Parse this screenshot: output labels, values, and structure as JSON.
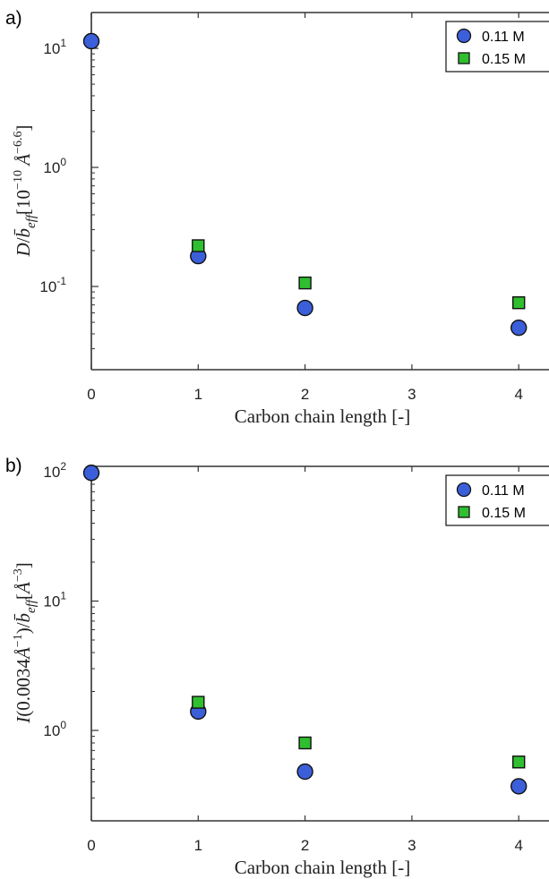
{
  "figure": {
    "panel_a_label": "a)",
    "panel_b_label": "b)"
  },
  "colors": {
    "series_0": "#3b5fd9",
    "series_1": "#2fbf2f",
    "axis": "#333333"
  },
  "chart_data": [
    {
      "type": "scatter",
      "panel": "a)",
      "xlabel": "Carbon chain length [-]",
      "ylabel": "D/b̄_eff [10^−10 Å^−6.6]",
      "xlim": [
        0,
        4.3
      ],
      "ylim": [
        0.02,
        20
      ],
      "yscale": "log",
      "xticks": [
        0,
        1,
        2,
        3,
        4
      ],
      "yticks": [
        {
          "value": 0.1,
          "base": "10",
          "exp": "-1"
        },
        {
          "value": 1,
          "base": "10",
          "exp": "0"
        },
        {
          "value": 10,
          "base": "10",
          "exp": "1"
        }
      ],
      "grid": false,
      "legend_position": "top-right",
      "series": [
        {
          "name": "0.11 M",
          "marker": "circle",
          "x": [
            0,
            1,
            2,
            4
          ],
          "y": [
            11.5,
            0.18,
            0.066,
            0.045
          ]
        },
        {
          "name": "0.15 M",
          "marker": "square",
          "x": [
            1,
            2,
            4
          ],
          "y": [
            0.22,
            0.107,
            0.073
          ]
        }
      ]
    },
    {
      "type": "scatter",
      "panel": "b)",
      "xlabel": "Carbon chain length [-]",
      "ylabel": "I(0.0034Å^−1)/b̄_eff [Å^−3]",
      "xlim": [
        0,
        4.3
      ],
      "ylim": [
        0.2,
        110
      ],
      "yscale": "log",
      "xticks": [
        0,
        1,
        2,
        3,
        4
      ],
      "yticks": [
        {
          "value": 1,
          "base": "10",
          "exp": "0"
        },
        {
          "value": 10,
          "base": "10",
          "exp": "1"
        },
        {
          "value": 100,
          "base": "10",
          "exp": "2"
        }
      ],
      "grid": false,
      "legend_position": "top-right",
      "series": [
        {
          "name": "0.11 M",
          "marker": "circle",
          "x": [
            0,
            1,
            2,
            4
          ],
          "y": [
            98,
            1.4,
            0.48,
            0.37
          ]
        },
        {
          "name": "0.15 M",
          "marker": "square",
          "x": [
            1,
            2,
            4
          ],
          "y": [
            1.65,
            0.8,
            0.57
          ]
        }
      ]
    }
  ]
}
